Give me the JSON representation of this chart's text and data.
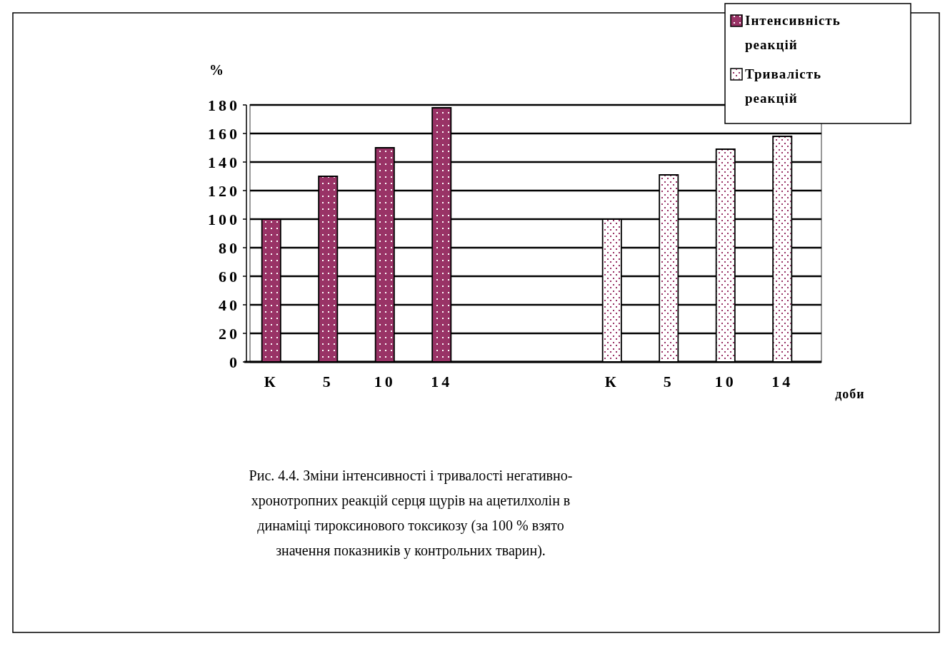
{
  "chart_data": {
    "type": "bar",
    "ylabel": "%",
    "xlabel": "доби",
    "categories": [
      "К",
      "5",
      "10",
      "14",
      null,
      null,
      "К",
      "5",
      "10",
      "14"
    ],
    "series": [
      {
        "name": "Інтенсивність реакцій",
        "color": "#993366",
        "values": [
          100,
          130,
          150,
          178,
          null,
          null,
          null,
          null,
          null,
          null
        ]
      },
      {
        "name": "Тривалість реакцій",
        "color": "#ffffff",
        "values": [
          null,
          null,
          null,
          null,
          null,
          null,
          100,
          131,
          149,
          158
        ]
      }
    ],
    "ylim": [
      0,
      180
    ],
    "yticks": [
      0,
      20,
      40,
      60,
      80,
      100,
      120,
      140,
      160,
      180
    ],
    "grid": "y",
    "legend": "top right",
    "annotations": [
      "Рис. 4.4. Зміни інтенсивності і тривалості негативно-хронотропних реакцій серця щурів на ацетилхолін в динаміці тироксинового токсикозу (за 100 % взято значення показників у контрольних тварин)."
    ]
  }
}
